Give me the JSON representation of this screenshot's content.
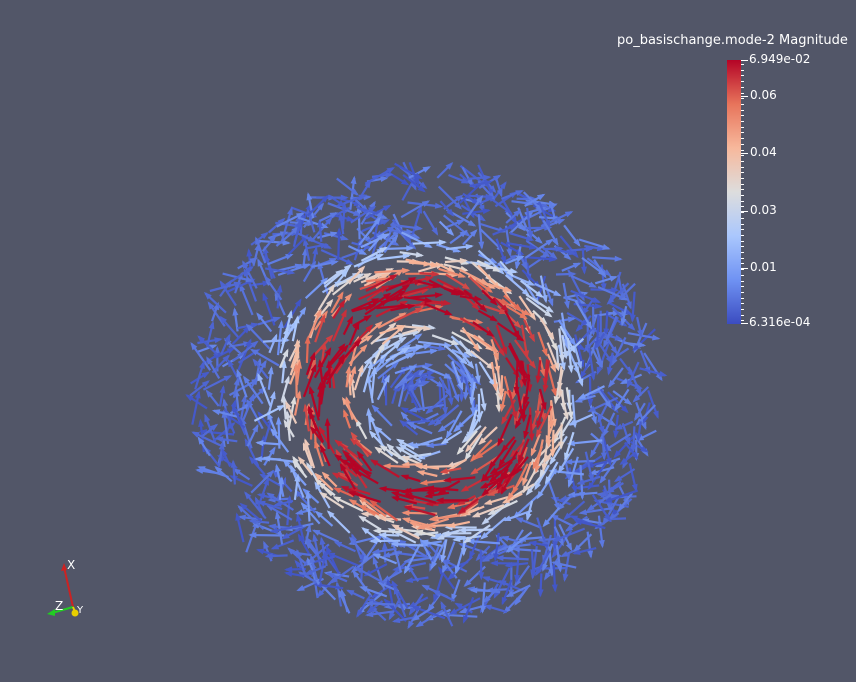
{
  "legend": {
    "title": "po_basischange.mode-2 Magnitude",
    "max_label": "6.949e-02",
    "min_label": "6.316e-04",
    "tick_labels": [
      "0.06",
      "0.04",
      "0.03",
      "0.01"
    ],
    "colormap": [
      "#3b4cc0",
      "#6f92f3",
      "#aac7fd",
      "#dddddd",
      "#f7b89c",
      "#e7745b",
      "#b40426"
    ]
  },
  "orientation_axes": {
    "x_label": "X",
    "y_label": "Y",
    "z_label": "Z",
    "x_color": "#cc2222",
    "y_color": "#e8d000",
    "z_color": "#22cc22"
  },
  "scene": {
    "background": "#525668",
    "glyph": "arrow",
    "pattern": "vortex"
  }
}
